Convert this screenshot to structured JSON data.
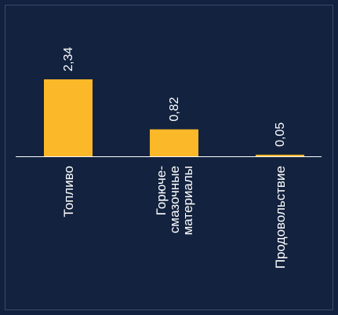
{
  "chart_data": {
    "type": "bar",
    "categories": [
      [
        "Топливо"
      ],
      [
        "Горюче-",
        "смазочные",
        "материалы"
      ],
      [
        "Продовольствие"
      ]
    ],
    "values": [
      2.34,
      0.82,
      0.05
    ],
    "value_labels": [
      "2,34",
      "0,82",
      "0,05"
    ],
    "ylim": [
      0,
      2.34
    ],
    "grid": false,
    "legend": "none"
  },
  "colors": {
    "background": "#13223f",
    "bar": "#fbb829",
    "axis": "#ffffff",
    "text": "#ffffff"
  }
}
